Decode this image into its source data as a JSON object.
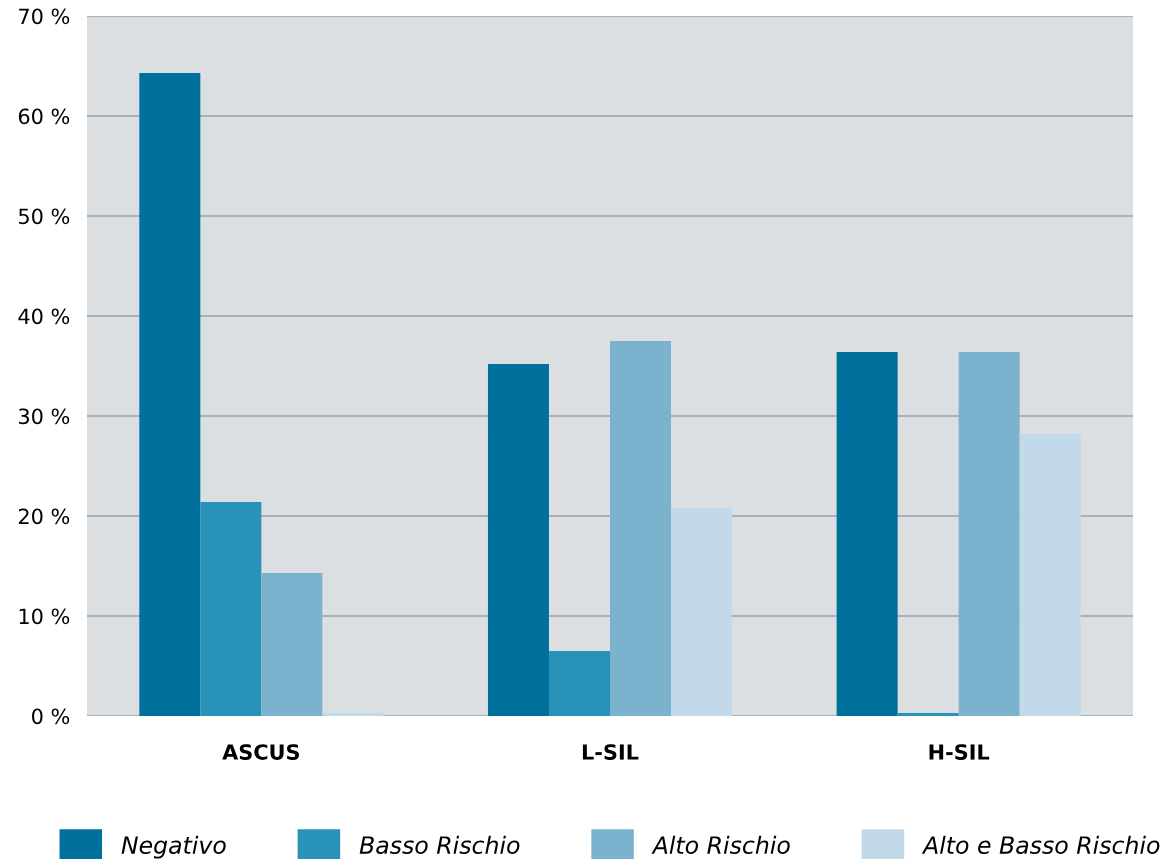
{
  "chart_data": {
    "type": "bar",
    "categories": [
      "ASCUS",
      "L-SIL",
      "H-SIL"
    ],
    "series": [
      {
        "name": "Negativo",
        "color": "#00719c",
        "values": [
          64.3,
          35.2,
          36.4
        ]
      },
      {
        "name": "Basso Rischio",
        "color": "#2892b9",
        "values": [
          21.4,
          6.5,
          0.3
        ]
      },
      {
        "name": "Alto Rischio",
        "color": "#7bb3cf",
        "values": [
          14.3,
          37.5,
          36.4
        ]
      },
      {
        "name": "Alto e Basso Rischio",
        "color": "#c1d9e8",
        "values": [
          0.3,
          20.8,
          28.2
        ]
      }
    ],
    "ylim": [
      0,
      70
    ],
    "yticks": [
      {
        "value": 0,
        "label": "0 %"
      },
      {
        "value": 10,
        "label": "10 %"
      },
      {
        "value": 20,
        "label": "20 %"
      },
      {
        "value": 30,
        "label": "30 %"
      },
      {
        "value": 40,
        "label": "40 %"
      },
      {
        "value": 50,
        "label": "50 %"
      },
      {
        "value": 60,
        "label": "60 %"
      },
      {
        "value": 70,
        "label": "70 %"
      }
    ],
    "grid": "y",
    "legend": "bottom"
  }
}
